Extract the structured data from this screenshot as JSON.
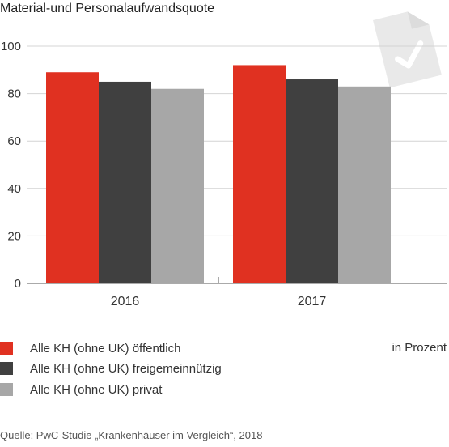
{
  "chart_data": {
    "type": "bar",
    "title": "Material-und Personalaufwandsquote",
    "categories": [
      "2016",
      "2017"
    ],
    "series": [
      {
        "name": "Alle KH (ohne UK) öffentlich",
        "values": [
          89,
          92
        ],
        "color": "#e03121"
      },
      {
        "name": "Alle KH (ohne UK) freigemeinnützig",
        "values": [
          85,
          86
        ],
        "color": "#404040"
      },
      {
        "name": "Alle KH (ohne UK) privat",
        "values": [
          82,
          83
        ],
        "color": "#a7a7a7"
      }
    ],
    "ylim": [
      0,
      100
    ],
    "yticks": [
      "0",
      "20",
      "40",
      "60",
      "80",
      "100"
    ],
    "grid": true,
    "legend_position": "bottom-left"
  },
  "unit_note": "in Prozent",
  "source": "Quelle: PwC-Studie „Krankenhäuser im Vergleich“, 2018",
  "icon": "document-check-icon"
}
